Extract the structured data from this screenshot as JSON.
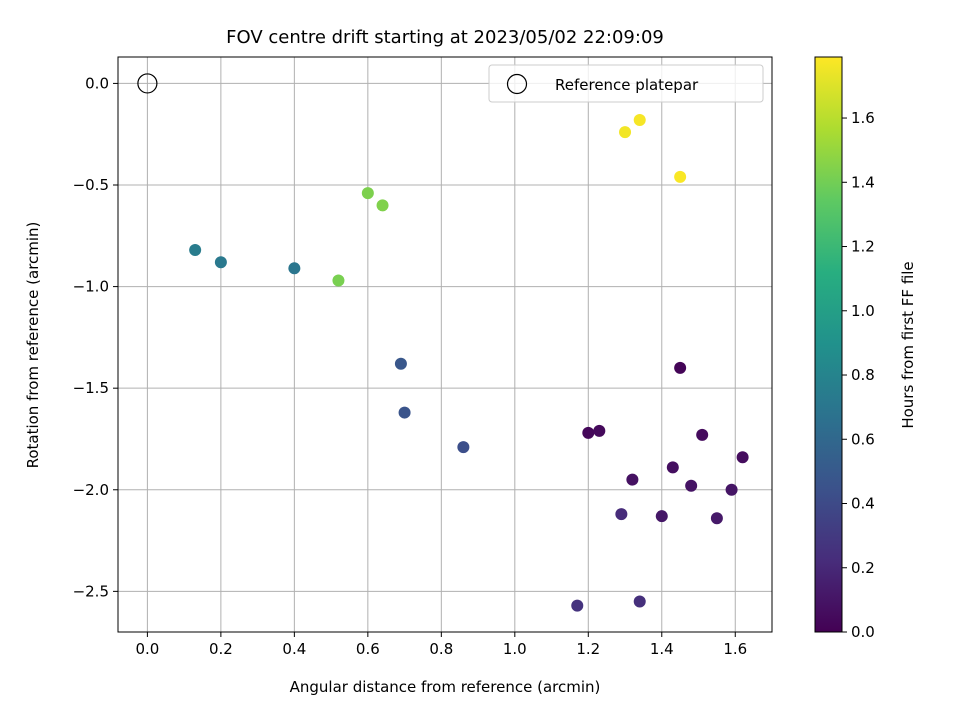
{
  "chart_data": {
    "type": "scatter",
    "title": "FOV centre drift starting at 2023/05/02 22:09:09",
    "xlabel": "Angular distance from reference (arcmin)",
    "ylabel": "Rotation from reference (arcmin)",
    "xlim": [
      -0.08,
      1.7
    ],
    "ylim": [
      -2.7,
      0.13
    ],
    "xticks": [
      0.0,
      0.2,
      0.4,
      0.6,
      0.8,
      1.0,
      1.2,
      1.4,
      1.6
    ],
    "xtick_labels": [
      "0.0",
      "0.2",
      "0.4",
      "0.6",
      "0.8",
      "1.0",
      "1.2",
      "1.4",
      "1.6"
    ],
    "yticks": [
      0.0,
      -0.5,
      -1.0,
      -1.5,
      -2.0,
      -2.5
    ],
    "ytick_labels": [
      "0.0",
      "−0.5",
      "−1.0",
      "−1.5",
      "−2.0",
      "−2.5"
    ],
    "grid": true,
    "legend": {
      "position": "top-right",
      "entries": [
        "Reference platepar"
      ]
    },
    "reference_point": {
      "label": "Reference platepar",
      "x": 0.0,
      "y": 0.0,
      "marker": "open-circle"
    },
    "colormap": "viridis",
    "colorbar": {
      "label": "Hours from first FF file",
      "range": [
        0.0,
        1.79
      ],
      "ticks": [
        0.0,
        0.2,
        0.4,
        0.6,
        0.8,
        1.0,
        1.2,
        1.4,
        1.6
      ],
      "tick_labels": [
        "0.0",
        "0.2",
        "0.4",
        "0.6",
        "0.8",
        "1.0",
        "1.2",
        "1.4",
        "1.6"
      ]
    },
    "points": [
      {
        "x": 1.45,
        "y": -1.4,
        "hours": 0.02
      },
      {
        "x": 1.2,
        "y": -1.72,
        "hours": 0.03
      },
      {
        "x": 1.23,
        "y": -1.71,
        "hours": 0.04
      },
      {
        "x": 1.51,
        "y": -1.73,
        "hours": 0.05
      },
      {
        "x": 1.62,
        "y": -1.84,
        "hours": 0.06
      },
      {
        "x": 1.43,
        "y": -1.89,
        "hours": 0.07
      },
      {
        "x": 1.32,
        "y": -1.95,
        "hours": 0.08
      },
      {
        "x": 1.48,
        "y": -1.98,
        "hours": 0.09
      },
      {
        "x": 1.59,
        "y": -2.0,
        "hours": 0.1
      },
      {
        "x": 1.4,
        "y": -2.13,
        "hours": 0.11
      },
      {
        "x": 1.55,
        "y": -2.14,
        "hours": 0.12
      },
      {
        "x": 1.29,
        "y": -2.12,
        "hours": 0.22
      },
      {
        "x": 1.34,
        "y": -2.55,
        "hours": 0.24
      },
      {
        "x": 1.17,
        "y": -2.57,
        "hours": 0.26
      },
      {
        "x": 0.86,
        "y": -1.79,
        "hours": 0.43
      },
      {
        "x": 0.7,
        "y": -1.62,
        "hours": 0.46
      },
      {
        "x": 0.69,
        "y": -1.38,
        "hours": 0.48
      },
      {
        "x": 0.4,
        "y": -0.91,
        "hours": 0.7
      },
      {
        "x": 0.2,
        "y": -0.88,
        "hours": 0.72
      },
      {
        "x": 0.13,
        "y": -0.82,
        "hours": 0.74
      },
      {
        "x": 0.52,
        "y": -0.97,
        "hours": 1.42
      },
      {
        "x": 0.6,
        "y": -0.54,
        "hours": 1.43
      },
      {
        "x": 0.64,
        "y": -0.6,
        "hours": 1.44
      },
      {
        "x": 1.3,
        "y": -0.24,
        "hours": 1.76
      },
      {
        "x": 1.34,
        "y": -0.18,
        "hours": 1.77
      },
      {
        "x": 1.45,
        "y": -0.46,
        "hours": 1.78
      }
    ]
  }
}
